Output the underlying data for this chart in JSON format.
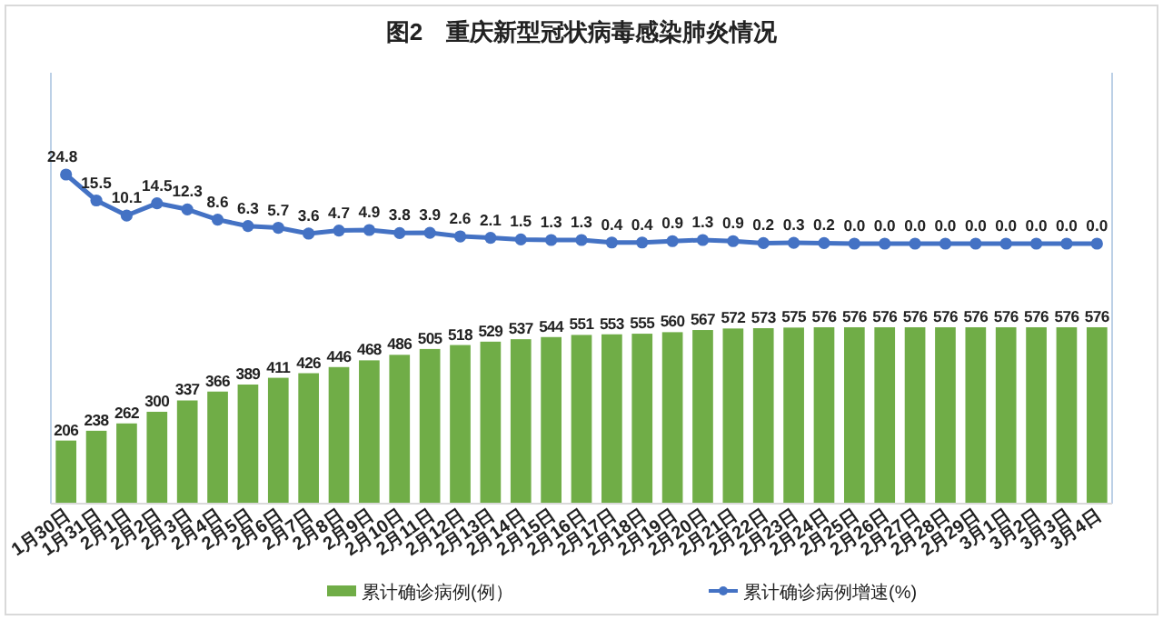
{
  "chart_data": [
    {
      "type": "line",
      "title": "图2　重庆新型冠状病毒感染肺炎情况",
      "categories": [
        null,
        null,
        null,
        null,
        null,
        null,
        null,
        null,
        null,
        null,
        null,
        null,
        null,
        null,
        null,
        null,
        null,
        null,
        null,
        null,
        null,
        null,
        null,
        null,
        null,
        null,
        null,
        null,
        null,
        null,
        null,
        null,
        null,
        null,
        null
      ],
      "series": [
        {
          "name": "累计确诊病例增速(%)",
          "color": "#4472c4",
          "values": [
            24.8,
            15.5,
            10.1,
            14.5,
            12.3,
            8.6,
            6.3,
            5.7,
            3.6,
            4.7,
            4.9,
            3.8,
            3.9,
            2.6,
            2.1,
            1.5,
            1.3,
            1.3,
            0.4,
            0.4,
            0.9,
            1.3,
            0.9,
            0.2,
            0.3,
            0.2,
            0,
            0,
            0,
            0,
            0,
            0,
            0,
            0,
            0
          ],
          "value_labels": [
            "24.8",
            "15.5",
            "10.1",
            "14.5",
            "12.3",
            "8.6",
            "6.3",
            "5.7",
            "3.6",
            "4.7",
            "4.9",
            "3.8",
            "3.9",
            "2.6",
            "2.1",
            "1.5",
            "1.3",
            "1.3",
            "0.4",
            "0.4",
            "0.9",
            "1.3",
            "0.9",
            "0.2",
            "0.3",
            "0.2",
            "0.0",
            "0.0",
            "0.0",
            "0.0",
            "0.0",
            "0.0",
            "0.0",
            "0.0",
            "0.0"
          ]
        }
      ],
      "legend": "bottom",
      "marker": "circle",
      "tick_labels": false
    },
    {
      "type": "bar",
      "categories": [
        "1月30日",
        "1月31日",
        "2月1日",
        "2月2日",
        "2月3日",
        "2月4日",
        "2月5日",
        "2月6日",
        "2月7日",
        "2月8日",
        "2月9日",
        "2月10日",
        "2月11日",
        "2月12日",
        "2月13日",
        "2月14日",
        "2月15日",
        "2月16日",
        "2月17日",
        "2月18日",
        "2月19日",
        "2月20日",
        "2月21日",
        "2月22日",
        "2月23日",
        "2月24日",
        "2月25日",
        "2月26日",
        "2月27日",
        "2月28日",
        "2月29日",
        "3月1日",
        "3月2日",
        "3月3日",
        "3月4日"
      ],
      "series": [
        {
          "name": "累计确诊病例(例）",
          "color": "#70ad47",
          "values": [
            206,
            238,
            262,
            300,
            337,
            366,
            389,
            411,
            426,
            446,
            468,
            486,
            505,
            518,
            529,
            537,
            544,
            551,
            553,
            555,
            560,
            567,
            572,
            573,
            575,
            576,
            576,
            576,
            576,
            576,
            576,
            576,
            576,
            576,
            576
          ]
        }
      ],
      "data_labels": true,
      "legend": "bottom"
    }
  ]
}
